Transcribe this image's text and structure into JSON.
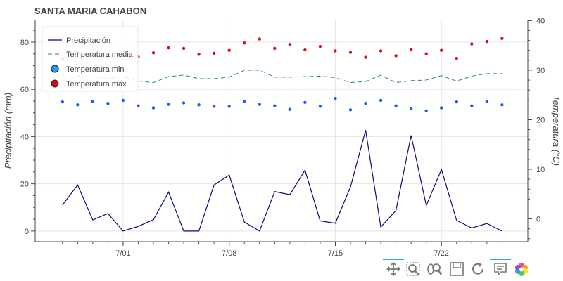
{
  "colors": {
    "precip": "#0b0b7a",
    "tmedia": "#2e8b6e",
    "tmin": "#1f5bff",
    "tmax": "#e01010",
    "legend_min_fill": "#1f9cff",
    "legend_max_fill": "#cc1111"
  },
  "toolbar": {
    "tools": [
      {
        "name": "pan-tool",
        "icon": "move-icon",
        "active": true
      },
      {
        "name": "box-zoom-tool",
        "icon": "box-zoom-icon",
        "active": false
      },
      {
        "name": "wheel-zoom-tool",
        "icon": "wheel-zoom-icon",
        "active": false
      },
      {
        "name": "save-tool",
        "icon": "save-icon",
        "active": false
      },
      {
        "name": "reset-tool",
        "icon": "reset-icon",
        "active": false
      },
      {
        "name": "hover-tool",
        "icon": "tooltip-icon",
        "active": true
      },
      {
        "name": "bokeh-logo",
        "icon": "bokeh-logo-icon",
        "active": false
      }
    ]
  },
  "chart_data": {
    "type": "line",
    "title": "SANTA MARIA CAHABON",
    "ylabel": "Precipitación (mm)",
    "y2label": "Temperatura (°C)",
    "ylim": [
      -4.5,
      89.5
    ],
    "y2lim": [
      -4.6,
      40.2
    ],
    "yticks": [
      0,
      20,
      40,
      60,
      80
    ],
    "y2ticks": [
      0,
      10,
      20,
      30,
      40
    ],
    "xlim": [
      -1.8,
      30.7
    ],
    "xticks": [
      {
        "pos": 4,
        "label": "7/01"
      },
      {
        "pos": 11,
        "label": "7/08"
      },
      {
        "pos": 18,
        "label": "7/15"
      },
      {
        "pos": 25,
        "label": "7/22"
      }
    ],
    "x": [
      0,
      1,
      2,
      3,
      4,
      5,
      6,
      7,
      8,
      9,
      10,
      11,
      12,
      13,
      14,
      15,
      16,
      17,
      18,
      19,
      20,
      21,
      22,
      23,
      24,
      25,
      26,
      27,
      28,
      29
    ],
    "grid": true,
    "legend_position": "top-left",
    "series": [
      {
        "name": "Precipitación",
        "axis": "left",
        "style": "line",
        "values": [
          11,
          19.5,
          4.7,
          7.4,
          0,
          2,
          4.8,
          16.5,
          0,
          0,
          19.5,
          23.7,
          3.8,
          0,
          16.7,
          15.4,
          25.8,
          4.3,
          3.3,
          18.7,
          42.7,
          1.7,
          8.7,
          40.5,
          10.8,
          26.1,
          4.5,
          1.3,
          3.2,
          0
        ]
      },
      {
        "name": "Temperatura media",
        "axis": "right",
        "style": "dashed",
        "values": [
          27.8,
          28.8,
          28.7,
          28.3,
          28.7,
          27.8,
          27.5,
          28.7,
          29.0,
          28.3,
          28.3,
          28.6,
          30.0,
          30.0,
          28.6,
          28.6,
          28.7,
          28.8,
          28.5,
          27.5,
          27.7,
          29.0,
          27.5,
          27.9,
          28.0,
          28.9,
          27.8,
          28.8,
          29.3,
          29.3
        ]
      },
      {
        "name": "Temperatura min",
        "axis": "right",
        "style": "dots",
        "values": [
          23.6,
          23.0,
          23.7,
          23.3,
          23.9,
          22.8,
          22.4,
          23.1,
          23.4,
          23.0,
          22.7,
          22.7,
          23.7,
          23.1,
          22.8,
          22.1,
          23.5,
          22.7,
          24.3,
          22.0,
          23.3,
          23.9,
          22.8,
          22.2,
          21.8,
          22.4,
          23.6,
          22.8,
          23.7,
          23.0
        ]
      },
      {
        "name": "Temperatura max",
        "axis": "right",
        "style": "dots",
        "values": [
          32.2,
          33.5,
          33.3,
          32.7,
          33.0,
          32.7,
          33.5,
          34.5,
          34.4,
          33.2,
          33.4,
          34.0,
          35.5,
          36.3,
          34.4,
          35.2,
          34.1,
          34.8,
          33.9,
          33.6,
          32.6,
          33.9,
          32.9,
          34.2,
          33.3,
          34.0,
          32.4,
          35.3,
          35.8,
          36.4
        ]
      }
    ]
  }
}
